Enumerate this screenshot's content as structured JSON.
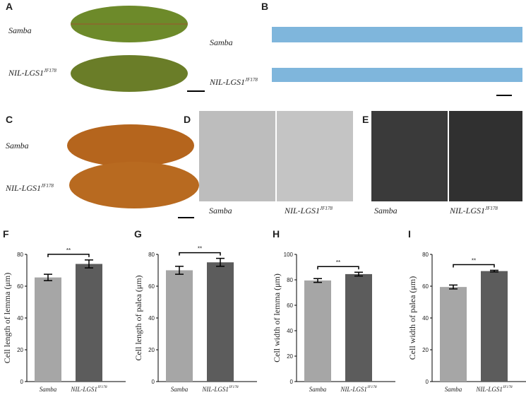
{
  "photos": [
    {
      "letter": "A",
      "labels": [
        {
          "text": "Samba"
        },
        {
          "text": "NIL-LGS1",
          "sup": "JF178"
        }
      ]
    },
    {
      "letter": "B",
      "labels": [
        {
          "text": "Samba"
        },
        {
          "text": "NIL-LGS1",
          "sup": "JF178"
        }
      ]
    },
    {
      "letter": "C",
      "labels": [
        {
          "text": "Samba"
        },
        {
          "text": "NIL-LGS1",
          "sup": "JF178"
        }
      ]
    },
    {
      "letter": "D",
      "labels": [
        {
          "text": "Samba"
        },
        {
          "text": "NIL-LGS1",
          "sup": "JF178"
        }
      ]
    },
    {
      "letter": "E",
      "labels": [
        {
          "text": "Samba"
        },
        {
          "text": "NIL-LGS1",
          "sup": "JF178"
        }
      ]
    }
  ],
  "chart_data": [
    {
      "type": "bar",
      "letter": "F",
      "ylabel": "Cell length of lemma (μm)",
      "categories": [
        {
          "text": "Samba"
        },
        {
          "text": "NIL-LGS1",
          "sup": "JF178"
        }
      ],
      "values": [
        65.5,
        74
      ],
      "errors": [
        2,
        2.5
      ],
      "colors": [
        "#a6a6a6",
        "#5c5c5c"
      ],
      "significance": "**",
      "ylim": [
        0,
        80
      ],
      "yticks": [
        0,
        20,
        40,
        60,
        80
      ]
    },
    {
      "type": "bar",
      "letter": "G",
      "ylabel": "Cell length of palea (μm)",
      "categories": [
        {
          "text": "Samba"
        },
        {
          "text": "NIL-LGS1",
          "sup": "JF178"
        }
      ],
      "values": [
        70,
        75
      ],
      "errors": [
        2.5,
        2.5
      ],
      "colors": [
        "#a6a6a6",
        "#5c5c5c"
      ],
      "significance": "**",
      "ylim": [
        0,
        80
      ],
      "yticks": [
        0,
        20,
        40,
        60,
        80
      ]
    },
    {
      "type": "bar",
      "letter": "H",
      "ylabel": "Cell width of lemma (μm)",
      "categories": [
        {
          "text": "Samba"
        },
        {
          "text": "NIL-LGS1",
          "sup": "JF178"
        }
      ],
      "values": [
        79.5,
        84.5
      ],
      "errors": [
        1.5,
        1.5
      ],
      "colors": [
        "#a6a6a6",
        "#5c5c5c"
      ],
      "significance": "**",
      "ylim": [
        0,
        100
      ],
      "yticks": [
        0,
        20,
        40,
        60,
        80,
        100
      ]
    },
    {
      "type": "bar",
      "letter": "I",
      "ylabel": "Cell width of palea (μm)",
      "categories": [
        {
          "text": "Samba"
        },
        {
          "text": "NIL-LGS1",
          "sup": "JF178"
        }
      ],
      "values": [
        59.5,
        69.5
      ],
      "errors": [
        1.2,
        0.5
      ],
      "colors": [
        "#a6a6a6",
        "#5c5c5c"
      ],
      "significance": "**",
      "ylim": [
        0,
        80
      ],
      "yticks": [
        0,
        20,
        40,
        60,
        80
      ]
    }
  ]
}
